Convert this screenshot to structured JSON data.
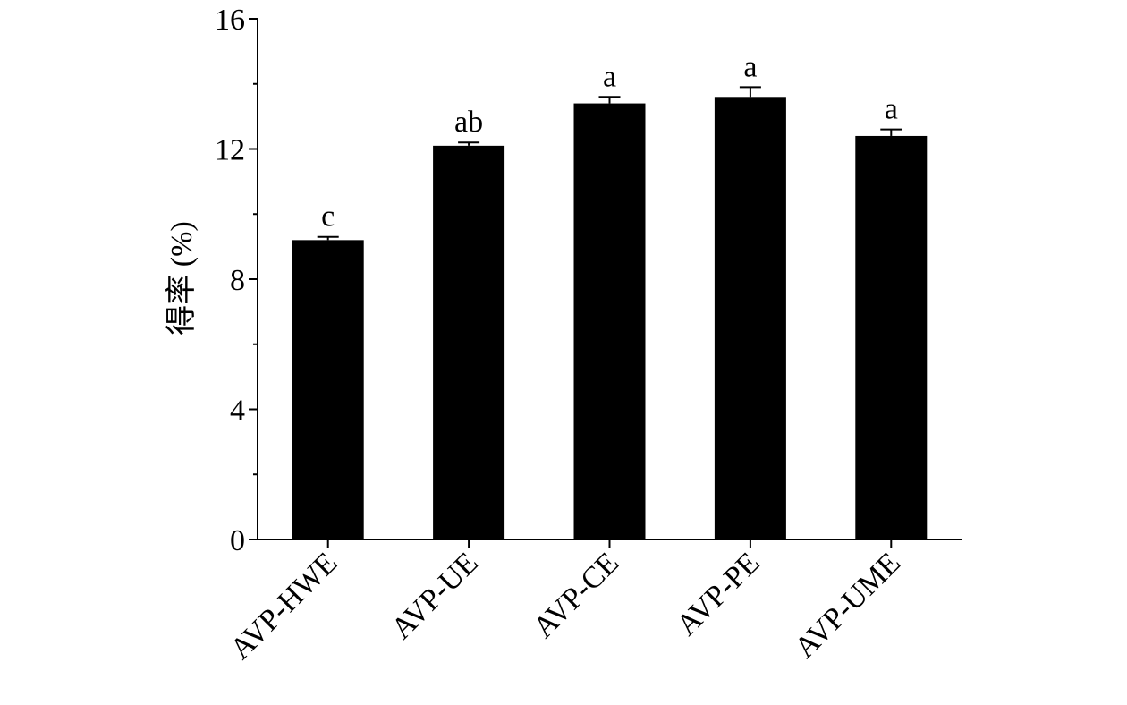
{
  "chart_data": {
    "type": "bar",
    "categories": [
      "AVP-HWE",
      "AVP-UE",
      "AVP-CE",
      "AVP-PE",
      "AVP-UME"
    ],
    "values": [
      9.2,
      12.1,
      13.4,
      13.6,
      12.4
    ],
    "errors": [
      0.1,
      0.1,
      0.2,
      0.3,
      0.2
    ],
    "significance_letters": [
      "c",
      "ab",
      "a",
      "a",
      "a"
    ],
    "ylabel": "得率 (%)",
    "xlabel": "",
    "title": "",
    "ylim": [
      0,
      16
    ],
    "yticks": [
      0,
      4,
      8,
      12,
      16
    ],
    "grid": false,
    "legend": "none",
    "bar_color": "#000000"
  }
}
